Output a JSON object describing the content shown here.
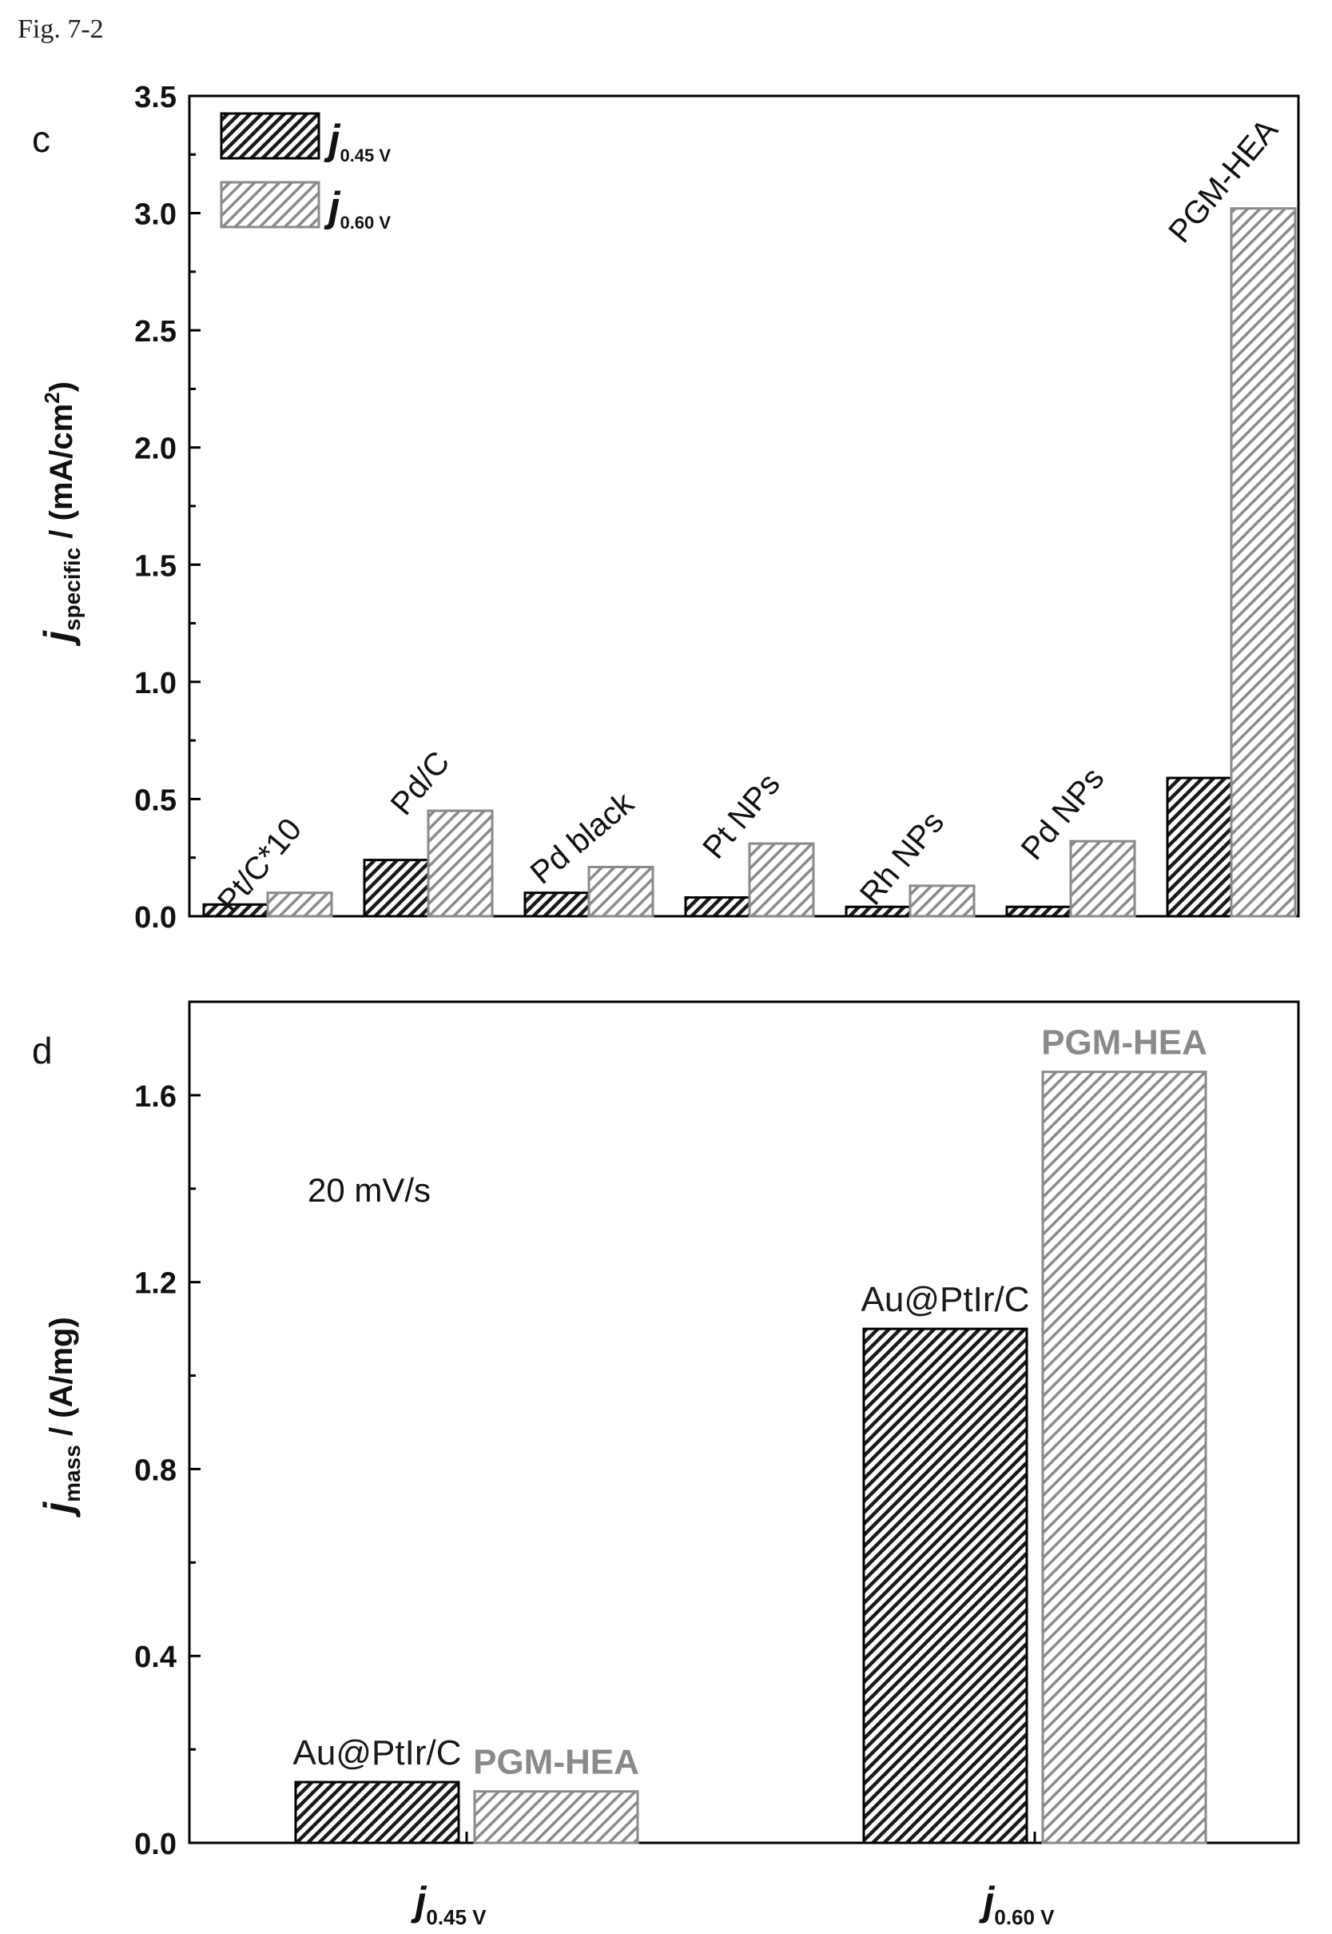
{
  "figure": {
    "label": "Fig. 7-2"
  },
  "legend": [
    {
      "sym": "j",
      "sub": "0.45 V",
      "style": "dark"
    },
    {
      "sym": "j",
      "sub": "0.60 V",
      "style": "light"
    }
  ],
  "chart_data": [
    {
      "panel": "c",
      "type": "bar",
      "ylabel": {
        "sym": "j",
        "sub": "specific",
        "unit": " / (mA/cm",
        "sup": "2",
        "close": ")"
      },
      "ylim": [
        0,
        3.5
      ],
      "yticks": [
        "0.0",
        "0.5",
        "1.0",
        "1.5",
        "2.0",
        "2.5",
        "3.0",
        "3.5"
      ],
      "ytick_values": [
        0,
        0.5,
        1.0,
        1.5,
        2.0,
        2.5,
        3.0,
        3.5
      ],
      "categories": [
        "Pt/C*10",
        "Pd/C",
        "Pd black",
        "Pt NPs",
        "Rh NPs",
        "Pd NPs",
        "PGM-HEA"
      ],
      "series": [
        {
          "name": "j0.45 V",
          "style": "dark",
          "values": [
            0.05,
            0.24,
            0.1,
            0.08,
            0.04,
            0.04,
            0.59
          ]
        },
        {
          "name": "j0.60 V",
          "style": "light",
          "values": [
            0.1,
            0.45,
            0.21,
            0.31,
            0.13,
            0.32,
            3.02
          ]
        }
      ],
      "legend_position": "top-left"
    },
    {
      "panel": "d",
      "type": "bar",
      "ylabel": {
        "sym": "j",
        "sub": "mass",
        "unit": " / (A/mg)"
      },
      "ylim": [
        0,
        1.8
      ],
      "yticks": [
        "0.0",
        "0.4",
        "0.8",
        "1.2",
        "1.6"
      ],
      "ytick_values": [
        0,
        0.4,
        0.8,
        1.2,
        1.6
      ],
      "categories": [
        {
          "sym": "j",
          "sub": "0.45 V"
        },
        {
          "sym": "j",
          "sub": "0.60 V"
        }
      ],
      "annotation": "20 mV/s",
      "series": [
        {
          "name": "Au@PtIr/C",
          "label": "Au@PtIr/C",
          "style": "dark",
          "label_color": "#1a1a1a",
          "values": [
            0.13,
            1.1
          ]
        },
        {
          "name": "PGM-HEA",
          "label": "PGM-HEA",
          "style": "light",
          "label_color": "#8a8a8a",
          "values": [
            0.11,
            1.65
          ]
        }
      ]
    }
  ]
}
